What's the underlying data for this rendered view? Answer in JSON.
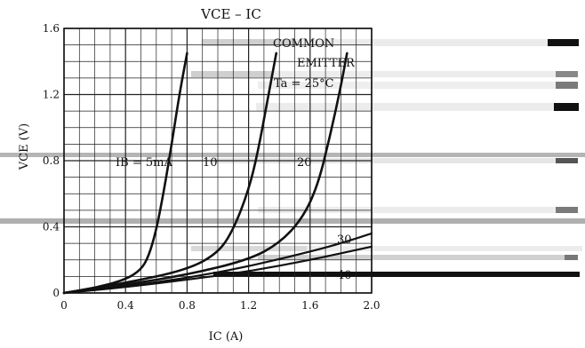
{
  "chart_data": {
    "type": "line",
    "title": "VCE – IC",
    "xlabel": "IC (A)",
    "ylabel": "VCE (V)",
    "xlim": [
      0,
      2.0
    ],
    "ylim": [
      0,
      1.6
    ],
    "x_ticks": [
      "0",
      "0.4",
      "0.8",
      "1.2",
      "1.6",
      "2.0"
    ],
    "y_ticks": [
      "0",
      "0.4",
      "0.8",
      "1.2",
      "1.6"
    ],
    "grid": true,
    "annotations": {
      "common": "COMMON",
      "emitter": "EMITTER",
      "temperature": "Ta = 25°C",
      "ib": "IB = 5mA",
      "ib_10": "10",
      "ib_20": "20",
      "ib_30": "30",
      "ib_40": "40"
    },
    "series": [
      {
        "label": "5",
        "points": [
          [
            0,
            0
          ],
          [
            0.2,
            0.03
          ],
          [
            0.4,
            0.08
          ],
          [
            0.5,
            0.14
          ],
          [
            0.55,
            0.22
          ],
          [
            0.6,
            0.38
          ],
          [
            0.65,
            0.62
          ],
          [
            0.7,
            0.9
          ],
          [
            0.75,
            1.2
          ],
          [
            0.8,
            1.45
          ]
        ]
      },
      {
        "label": "10",
        "points": [
          [
            0,
            0
          ],
          [
            0.4,
            0.06
          ],
          [
            0.8,
            0.14
          ],
          [
            1.0,
            0.24
          ],
          [
            1.1,
            0.38
          ],
          [
            1.2,
            0.62
          ],
          [
            1.26,
            0.85
          ],
          [
            1.32,
            1.15
          ],
          [
            1.38,
            1.45
          ]
        ]
      },
      {
        "label": "20",
        "points": [
          [
            0,
            0
          ],
          [
            0.4,
            0.05
          ],
          [
            0.8,
            0.11
          ],
          [
            1.2,
            0.2
          ],
          [
            1.4,
            0.3
          ],
          [
            1.55,
            0.45
          ],
          [
            1.65,
            0.65
          ],
          [
            1.73,
            0.95
          ],
          [
            1.8,
            1.25
          ],
          [
            1.84,
            1.45
          ]
        ]
      },
      {
        "label": "30",
        "points": [
          [
            0,
            0
          ],
          [
            0.4,
            0.04
          ],
          [
            0.8,
            0.09
          ],
          [
            1.2,
            0.16
          ],
          [
            1.6,
            0.25
          ],
          [
            1.8,
            0.3
          ],
          [
            2.0,
            0.36
          ]
        ]
      },
      {
        "label": "40",
        "points": [
          [
            0,
            0
          ],
          [
            0.4,
            0.035
          ],
          [
            0.8,
            0.08
          ],
          [
            1.2,
            0.13
          ],
          [
            1.6,
            0.2
          ],
          [
            1.8,
            0.24
          ],
          [
            2.0,
            0.28
          ]
        ]
      }
    ]
  }
}
